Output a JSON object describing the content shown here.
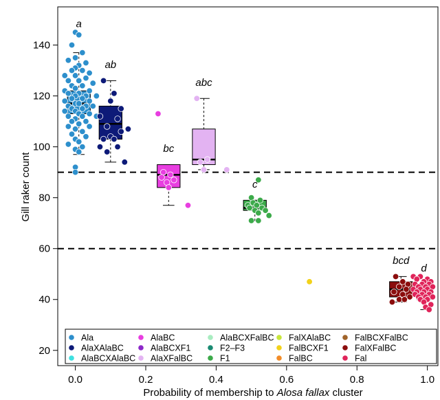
{
  "chart_data": {
    "type": "scatter",
    "title": "",
    "xlabel_prefix": "Probability of membership to ",
    "xlabel_italic": "Alosa fallax",
    "xlabel_suffix": " cluster",
    "ylabel": "Gill raker count",
    "xlim": [
      -0.05,
      1.03
    ],
    "ylim": [
      14,
      155
    ],
    "x_ticks": [
      0.0,
      0.2,
      0.4,
      0.6,
      0.8,
      1.0
    ],
    "x_tick_labels": [
      "0.0",
      "0.2",
      "0.4",
      "0.6",
      "0.8",
      "1.0"
    ],
    "y_ticks": [
      20,
      40,
      60,
      80,
      100,
      120,
      140
    ],
    "y_tick_labels": [
      "20",
      "40",
      "60",
      "80",
      "100",
      "120",
      "140"
    ],
    "reference_lines": [
      90,
      60
    ],
    "boxes": [
      {
        "group": "Ala",
        "x": 0.01,
        "width": 0.065,
        "whisker_low": 97,
        "q1": 113,
        "median": 117,
        "q3": 122,
        "whisker_high": 137,
        "letter": "a",
        "letter_y": 147,
        "fill": "#2d8fcc"
      },
      {
        "group": "AlaXAlaBC",
        "x": 0.1,
        "width": 0.065,
        "whisker_low": 94,
        "q1": 103,
        "median": 109,
        "q3": 116,
        "whisker_high": 126,
        "letter": "ab",
        "letter_y": 131,
        "fill": "#0d1a78"
      },
      {
        "group": "AlaBC",
        "x": 0.265,
        "width": 0.065,
        "whisker_low": 77,
        "q1": 84,
        "median": 89,
        "q3": 93,
        "whisker_high": 93,
        "letter": "bc",
        "letter_y": 98,
        "fill": "#e83ee0"
      },
      {
        "group": "AlaXFalBC",
        "x": 0.365,
        "width": 0.065,
        "whisker_low": 91,
        "q1": 93,
        "median": 95,
        "q3": 107,
        "whisker_high": 119,
        "letter": "abc",
        "letter_y": 124,
        "fill": "#e3b3f2"
      },
      {
        "group": "F1",
        "x": 0.51,
        "width": 0.065,
        "whisker_low": 71,
        "q1": 75,
        "median": 76,
        "q3": 79,
        "whisker_high": 79,
        "letter": "c",
        "letter_y": 84,
        "fill": "#3caa4a"
      },
      {
        "group": "FalXFalBC",
        "x": 0.925,
        "width": 0.065,
        "whisker_low": 39,
        "q1": 41,
        "median": 44,
        "q3": 47,
        "whisker_high": 49,
        "letter": "bcd",
        "letter_y": 54,
        "fill": "#8b0d0d"
      },
      {
        "group": "Fal",
        "x": 0.99,
        "width": 0.04,
        "whisker_low": 36,
        "q1": 40,
        "median": 41,
        "q3": 43,
        "whisker_high": 46,
        "letter": "d",
        "letter_y": 51,
        "fill": "#e0245a"
      }
    ],
    "series": [
      {
        "name": "Ala",
        "color": "#2d8fcc",
        "points": [
          [
            0.0,
            145
          ],
          [
            0.01,
            144
          ],
          [
            -0.01,
            140
          ],
          [
            0.02,
            137
          ],
          [
            0.0,
            135
          ],
          [
            -0.02,
            134
          ],
          [
            0.03,
            133
          ],
          [
            0.01,
            132
          ],
          [
            0.0,
            131
          ],
          [
            -0.01,
            130
          ],
          [
            0.02,
            130
          ],
          [
            0.04,
            129
          ],
          [
            -0.03,
            128
          ],
          [
            0.0,
            128
          ],
          [
            0.03,
            127
          ],
          [
            -0.02,
            126
          ],
          [
            0.01,
            126
          ],
          [
            0.05,
            125
          ],
          [
            -0.01,
            124
          ],
          [
            0.02,
            124
          ],
          [
            0.0,
            123
          ],
          [
            -0.03,
            122
          ],
          [
            0.04,
            122
          ],
          [
            0.01,
            121
          ],
          [
            -0.02,
            121
          ],
          [
            0.03,
            120
          ],
          [
            0.0,
            120
          ],
          [
            0.06,
            120
          ],
          [
            -0.01,
            119
          ],
          [
            0.02,
            119
          ],
          [
            -0.03,
            118
          ],
          [
            0.04,
            118
          ],
          [
            0.0,
            117
          ],
          [
            0.01,
            117
          ],
          [
            -0.02,
            116
          ],
          [
            0.03,
            116
          ],
          [
            0.05,
            116
          ],
          [
            -0.01,
            115
          ],
          [
            0.02,
            115
          ],
          [
            0.0,
            114
          ],
          [
            -0.03,
            114
          ],
          [
            0.04,
            113
          ],
          [
            0.01,
            113
          ],
          [
            -0.02,
            112
          ],
          [
            0.02,
            112
          ],
          [
            0.06,
            112
          ],
          [
            0.0,
            111
          ],
          [
            -0.01,
            110
          ],
          [
            0.03,
            110
          ],
          [
            0.01,
            109
          ],
          [
            -0.02,
            108
          ],
          [
            0.04,
            108
          ],
          [
            0.0,
            107
          ],
          [
            0.02,
            106
          ],
          [
            -0.01,
            105
          ],
          [
            0.03,
            104
          ],
          [
            0.0,
            103
          ],
          [
            0.01,
            102
          ],
          [
            -0.02,
            101
          ],
          [
            0.02,
            100
          ],
          [
            0.0,
            99
          ],
          [
            0.01,
            98
          ],
          [
            0.0,
            92
          ],
          [
            0.0,
            90
          ]
        ]
      },
      {
        "name": "AlaXAlaBC",
        "color": "#0d1a78",
        "points": [
          [
            0.08,
            126
          ],
          [
            0.11,
            121
          ],
          [
            0.1,
            118
          ],
          [
            0.13,
            115
          ],
          [
            0.07,
            112
          ],
          [
            0.12,
            111
          ],
          [
            0.09,
            108
          ],
          [
            0.15,
            107
          ],
          [
            0.13,
            106
          ],
          [
            0.1,
            104
          ],
          [
            0.08,
            103
          ],
          [
            0.11,
            103
          ],
          [
            0.07,
            100
          ],
          [
            0.12,
            100
          ],
          [
            0.09,
            98
          ],
          [
            0.14,
            94
          ]
        ]
      },
      {
        "name": "AlaBC",
        "color": "#e83ee0",
        "points": [
          [
            0.235,
            113
          ],
          [
            0.25,
            90
          ],
          [
            0.27,
            89
          ],
          [
            0.245,
            88
          ],
          [
            0.26,
            86
          ],
          [
            0.28,
            87
          ],
          [
            0.265,
            84
          ],
          [
            0.32,
            77
          ]
        ]
      },
      {
        "name": "AlaXFalBC",
        "color": "#e3b3f2",
        "points": [
          [
            0.345,
            119
          ],
          [
            0.355,
            94
          ],
          [
            0.375,
            95
          ],
          [
            0.365,
            91
          ],
          [
            0.43,
            91
          ]
        ]
      },
      {
        "name": "F1",
        "color": "#3caa4a",
        "points": [
          [
            0.52,
            87
          ],
          [
            0.5,
            80
          ],
          [
            0.525,
            79
          ],
          [
            0.505,
            78
          ],
          [
            0.49,
            77
          ],
          [
            0.515,
            77
          ],
          [
            0.53,
            76
          ],
          [
            0.495,
            76
          ],
          [
            0.51,
            75
          ],
          [
            0.54,
            75
          ],
          [
            0.52,
            74
          ],
          [
            0.55,
            73
          ],
          [
            0.5,
            71
          ],
          [
            0.52,
            71
          ]
        ]
      },
      {
        "name": "FalBCXF1",
        "color": "#f2d21a",
        "points": [
          [
            0.665,
            47
          ]
        ]
      },
      {
        "name": "FalXFalBC",
        "color": "#8b0d0d",
        "points": [
          [
            0.91,
            49
          ],
          [
            0.93,
            47
          ],
          [
            0.945,
            46
          ],
          [
            0.92,
            45
          ],
          [
            0.94,
            44
          ],
          [
            0.905,
            43
          ],
          [
            0.93,
            42
          ],
          [
            0.95,
            41
          ],
          [
            0.92,
            40
          ],
          [
            0.9,
            39
          ],
          [
            0.935,
            40
          ]
        ]
      },
      {
        "name": "Fal",
        "color": "#e0245a",
        "points": [
          [
            0.96,
            49
          ],
          [
            0.98,
            49
          ],
          [
            1.0,
            48
          ],
          [
            0.97,
            48
          ],
          [
            0.99,
            47
          ],
          [
            1.01,
            47
          ],
          [
            0.965,
            46
          ],
          [
            0.985,
            46
          ],
          [
            1.005,
            46
          ],
          [
            0.975,
            45
          ],
          [
            0.995,
            45
          ],
          [
            1.015,
            45
          ],
          [
            0.96,
            44
          ],
          [
            0.98,
            44
          ],
          [
            1.0,
            44
          ],
          [
            0.97,
            43
          ],
          [
            0.99,
            43
          ],
          [
            1.01,
            43
          ],
          [
            0.965,
            42
          ],
          [
            0.985,
            42
          ],
          [
            1.005,
            42
          ],
          [
            0.975,
            41
          ],
          [
            0.995,
            41
          ],
          [
            1.015,
            41
          ],
          [
            0.98,
            40
          ],
          [
            1.0,
            40
          ],
          [
            0.99,
            39
          ],
          [
            1.01,
            38
          ],
          [
            0.995,
            37
          ],
          [
            1.005,
            36
          ]
        ]
      }
    ],
    "legend_position": "bottom",
    "legend": [
      {
        "label": "Ala",
        "color": "#2d8fcc"
      },
      {
        "label": "AlaXAlaBC",
        "color": "#0d1a78"
      },
      {
        "label": "AlaBCXAlaBC",
        "color": "#3fe0e0"
      },
      {
        "label": "AlaBC",
        "color": "#e83ee0"
      },
      {
        "label": "AlaBCXF1",
        "color": "#8c28c8"
      },
      {
        "label": "AlaXFalBC",
        "color": "#e3b3f2"
      },
      {
        "label": "AlaBCXFalBC",
        "color": "#a8ecc0"
      },
      {
        "label": "F2–F3",
        "color": "#1a8a72"
      },
      {
        "label": "F1",
        "color": "#3caa4a"
      },
      {
        "label": "FalXAlaBC",
        "color": "#c8e63c"
      },
      {
        "label": "FalBCXF1",
        "color": "#f2d21a"
      },
      {
        "label": "FalBC",
        "color": "#f28c28"
      },
      {
        "label": "FalBCXFalBC",
        "color": "#a0642a"
      },
      {
        "label": "FalXFalBC",
        "color": "#8b0d0d"
      },
      {
        "label": "Fal",
        "color": "#e0245a"
      }
    ]
  }
}
